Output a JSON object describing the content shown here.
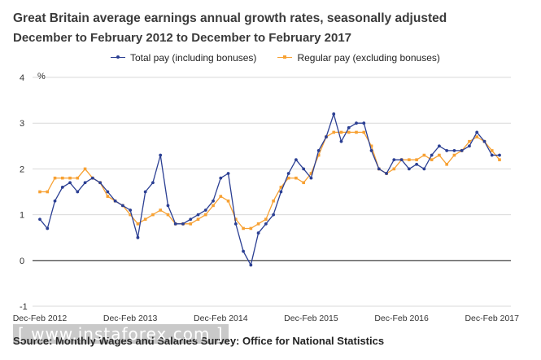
{
  "header": {
    "title": "Great Britain average earnings annual growth rates, seasonally adjusted",
    "subtitle": "December to February 2012 to December to February 2017"
  },
  "legend": {
    "total_label": "Total pay (including bonuses)",
    "regular_label": "Regular pay (excluding bonuses)"
  },
  "footer": {
    "source": "Source: Monthly Wages and Salaries Survey: Office for National  Statistics",
    "watermark": "[ www.instaforex.com ]"
  },
  "colors": {
    "total": "#2b3f93",
    "regular": "#f7a133",
    "grid": "#d9d9d9",
    "zero_line": "#6e6e6e"
  },
  "chart_data": {
    "type": "line",
    "ylabel": "%",
    "ylim": [
      -1,
      4
    ],
    "yticks": [
      -1,
      0,
      1,
      2,
      3,
      4
    ],
    "grid": true,
    "legend_position": "top",
    "x_tick_labels": [
      "Dec-Feb 2012",
      "Dec-Feb 2013",
      "Dec-Feb 2014",
      "Dec-Feb 2015",
      "Dec-Feb 2016",
      "Dec-Feb 2017"
    ],
    "x_tick_indices": [
      0,
      12,
      24,
      36,
      48,
      60
    ],
    "series": [
      {
        "name": "Total pay (including bonuses)",
        "marker": "circle",
        "values": [
          0.9,
          0.7,
          1.3,
          1.6,
          1.7,
          1.5,
          1.7,
          1.8,
          1.7,
          1.5,
          1.3,
          1.2,
          1.1,
          0.5,
          1.5,
          1.7,
          2.3,
          1.2,
          0.8,
          0.8,
          0.9,
          1.0,
          1.1,
          1.3,
          1.8,
          1.9,
          0.8,
          0.2,
          -0.1,
          0.6,
          0.8,
          1.0,
          1.5,
          1.9,
          2.2,
          2.0,
          1.8,
          2.4,
          2.7,
          3.2,
          2.6,
          2.9,
          3.0,
          3.0,
          2.4,
          2.0,
          1.9,
          2.2,
          2.2,
          2.0,
          2.1,
          2.0,
          2.3,
          2.5,
          2.4,
          2.4,
          2.4,
          2.5,
          2.8,
          2.6,
          2.3,
          2.3
        ]
      },
      {
        "name": "Regular pay (excluding bonuses)",
        "marker": "square",
        "values": [
          1.5,
          1.5,
          1.8,
          1.8,
          1.8,
          1.8,
          2.0,
          1.8,
          1.7,
          1.4,
          1.3,
          1.2,
          1.0,
          0.8,
          0.9,
          1.0,
          1.1,
          1.0,
          0.8,
          0.8,
          0.8,
          0.9,
          1.0,
          1.2,
          1.4,
          1.3,
          0.9,
          0.7,
          0.7,
          0.8,
          0.9,
          1.3,
          1.6,
          1.8,
          1.8,
          1.7,
          1.9,
          2.3,
          2.7,
          2.8,
          2.8,
          2.8,
          2.8,
          2.8,
          2.5,
          2.0,
          1.9,
          2.0,
          2.2,
          2.2,
          2.2,
          2.3,
          2.2,
          2.3,
          2.1,
          2.3,
          2.4,
          2.6,
          2.7,
          2.6,
          2.4,
          2.2
        ]
      }
    ]
  }
}
